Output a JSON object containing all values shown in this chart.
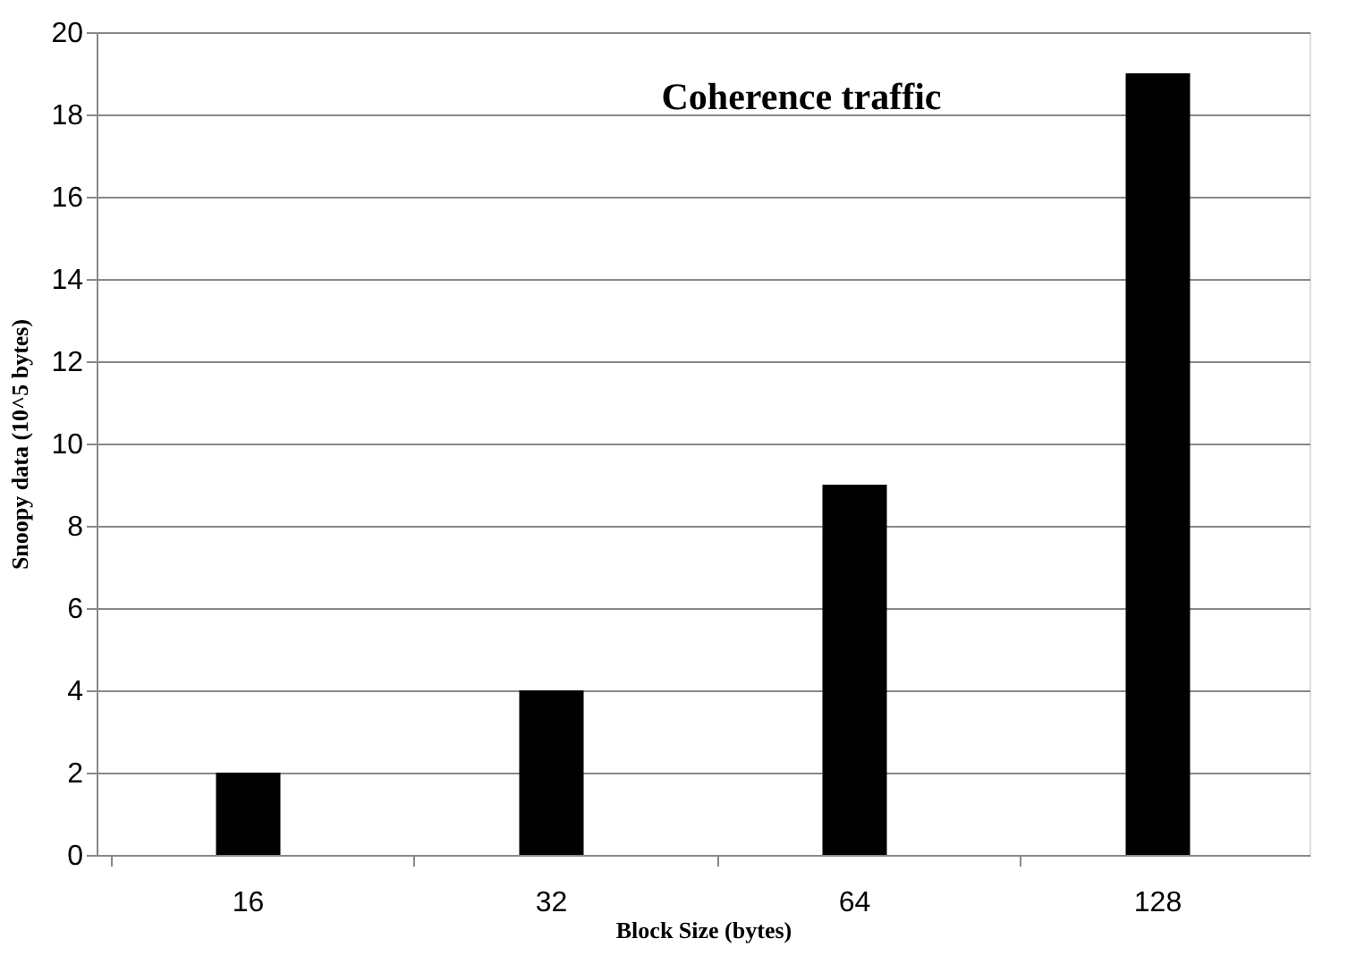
{
  "chart_data": {
    "type": "bar",
    "title": "Coherence traffic",
    "xlabel": "Block Size (bytes)",
    "ylabel": "Snoopy data (10^5 bytes)",
    "categories": [
      "16",
      "32",
      "64",
      "128"
    ],
    "values": [
      2,
      4,
      9,
      19
    ],
    "color": "#000000",
    "ylim": [
      0,
      20
    ],
    "yticks": [
      0,
      2,
      4,
      6,
      8,
      10,
      12,
      14,
      16,
      18,
      20
    ],
    "grid": "y"
  }
}
